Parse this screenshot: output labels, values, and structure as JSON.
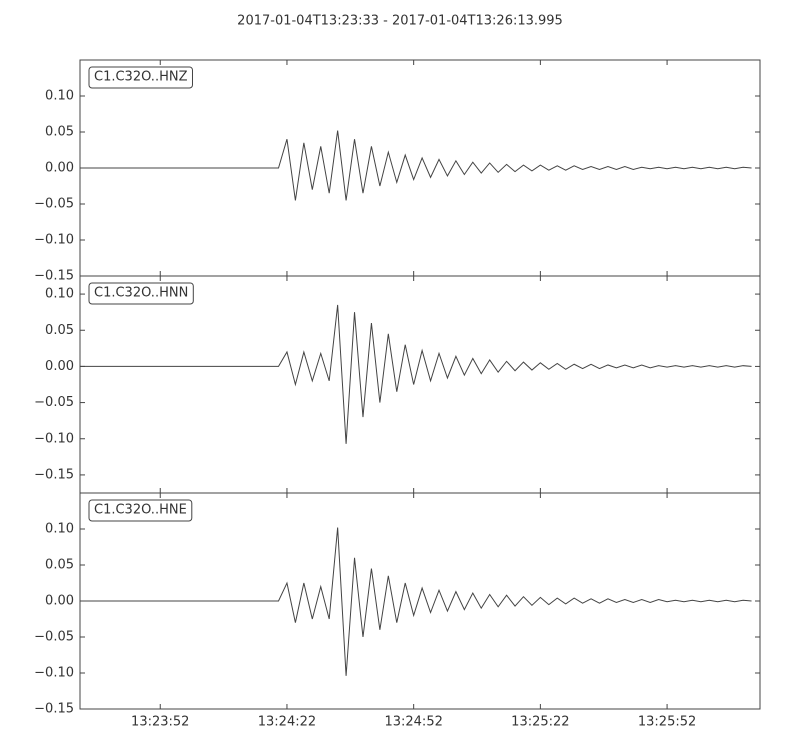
{
  "title": "2017-01-04T13:23:33  -  2017-01-04T13:26:13.995",
  "chart_data": [
    {
      "type": "line",
      "annotation": "C1.C32O..HNZ",
      "color": "#444444",
      "xlim": [
        "13:23:33",
        "13:26:14"
      ],
      "ylim": [
        -0.15,
        0.15
      ],
      "yticks": [
        {
          "value": -0.15,
          "label": "−0.15"
        },
        {
          "value": -0.1,
          "label": "−0.10"
        },
        {
          "value": -0.05,
          "label": "−0.05"
        },
        {
          "value": 0,
          "label": "0.00"
        },
        {
          "value": 0.05,
          "label": "0.05"
        },
        {
          "value": 0.1,
          "label": "0.10"
        }
      ],
      "x": [
        "13:23:33",
        "13:24:18",
        "13:24:20",
        "13:24:22",
        "13:24:24",
        "13:24:26",
        "13:24:28",
        "13:24:30",
        "13:24:32",
        "13:24:34",
        "13:24:36",
        "13:24:38",
        "13:24:40",
        "13:24:42",
        "13:24:44",
        "13:24:46",
        "13:24:48",
        "13:24:50",
        "13:24:52",
        "13:24:54",
        "13:24:56",
        "13:24:58",
        "13:25:00",
        "13:25:02",
        "13:25:04",
        "13:25:06",
        "13:25:08",
        "13:25:10",
        "13:25:12",
        "13:25:14",
        "13:25:16",
        "13:25:18",
        "13:25:20",
        "13:25:22",
        "13:25:24",
        "13:25:26",
        "13:25:28",
        "13:25:30",
        "13:25:32",
        "13:25:34",
        "13:25:36",
        "13:25:38",
        "13:25:40",
        "13:25:42",
        "13:25:44",
        "13:25:46",
        "13:25:48",
        "13:25:50",
        "13:25:52",
        "13:25:54",
        "13:25:56",
        "13:25:58",
        "13:26:00",
        "13:26:02",
        "13:26:04",
        "13:26:06",
        "13:26:08",
        "13:26:10",
        "13:26:12"
      ],
      "values": [
        0,
        0,
        0,
        0.04,
        -0.045,
        0.035,
        -0.03,
        0.03,
        -0.035,
        0.052,
        -0.045,
        0.04,
        -0.035,
        0.03,
        -0.025,
        0.022,
        -0.02,
        0.018,
        -0.016,
        0.014,
        -0.013,
        0.012,
        -0.011,
        0.01,
        -0.009,
        0.008,
        -0.007,
        0.007,
        -0.006,
        0.005,
        -0.005,
        0.004,
        -0.004,
        0.004,
        -0.003,
        0.003,
        -0.003,
        0.003,
        -0.002,
        0.002,
        -0.002,
        0.002,
        -0.002,
        0.002,
        -0.002,
        0.001,
        -0.001,
        0.001,
        -0.001,
        0.001,
        -0.001,
        0.001,
        -0.001,
        0.001,
        -0.001,
        0.001,
        -0.001,
        0.001,
        0
      ]
    },
    {
      "type": "line",
      "annotation": "C1.C32O..HNN",
      "color": "#444444",
      "xlim": [
        "13:23:33",
        "13:26:14"
      ],
      "ylim": [
        -0.175,
        0.125
      ],
      "yticks": [
        {
          "value": -0.15,
          "label": "−0.15"
        },
        {
          "value": -0.1,
          "label": "−0.10"
        },
        {
          "value": -0.05,
          "label": "−0.05"
        },
        {
          "value": 0,
          "label": "0.00"
        },
        {
          "value": 0.05,
          "label": "0.05"
        },
        {
          "value": 0.1,
          "label": "0.10"
        }
      ],
      "x": [
        "13:23:33",
        "13:24:18",
        "13:24:20",
        "13:24:22",
        "13:24:24",
        "13:24:26",
        "13:24:28",
        "13:24:30",
        "13:24:32",
        "13:24:34",
        "13:24:36",
        "13:24:38",
        "13:24:40",
        "13:24:42",
        "13:24:44",
        "13:24:46",
        "13:24:48",
        "13:24:50",
        "13:24:52",
        "13:24:54",
        "13:24:56",
        "13:24:58",
        "13:25:00",
        "13:25:02",
        "13:25:04",
        "13:25:06",
        "13:25:08",
        "13:25:10",
        "13:25:12",
        "13:25:14",
        "13:25:16",
        "13:25:18",
        "13:25:20",
        "13:25:22",
        "13:25:24",
        "13:25:26",
        "13:25:28",
        "13:25:30",
        "13:25:32",
        "13:25:34",
        "13:25:36",
        "13:25:38",
        "13:25:40",
        "13:25:42",
        "13:25:44",
        "13:25:46",
        "13:25:48",
        "13:25:50",
        "13:25:52",
        "13:25:54",
        "13:25:56",
        "13:25:58",
        "13:26:00",
        "13:26:02",
        "13:26:04",
        "13:26:06",
        "13:26:08",
        "13:26:10",
        "13:26:12"
      ],
      "values": [
        0,
        0,
        0,
        0.02,
        -0.025,
        0.02,
        -0.02,
        0.018,
        -0.02,
        0.085,
        -0.107,
        0.075,
        -0.07,
        0.06,
        -0.05,
        0.045,
        -0.035,
        0.03,
        -0.025,
        0.022,
        -0.02,
        0.018,
        -0.016,
        0.014,
        -0.012,
        0.011,
        -0.01,
        0.009,
        -0.008,
        0.007,
        -0.006,
        0.006,
        -0.005,
        0.005,
        -0.004,
        0.004,
        -0.004,
        0.003,
        -0.003,
        0.003,
        -0.003,
        0.002,
        -0.002,
        0.002,
        -0.002,
        0.002,
        -0.002,
        0.001,
        -0.001,
        0.001,
        -0.001,
        0.001,
        -0.001,
        0.001,
        -0.001,
        0.001,
        -0.001,
        0.001,
        0
      ]
    },
    {
      "type": "line",
      "annotation": "C1.C32O..HNE",
      "color": "#444444",
      "xlim": [
        "13:23:33",
        "13:26:14"
      ],
      "ylim": [
        -0.15,
        0.15
      ],
      "xticks": [
        "13:23:52",
        "13:24:22",
        "13:24:52",
        "13:25:22",
        "13:25:52"
      ],
      "yticks": [
        {
          "value": -0.15,
          "label": "−0.15"
        },
        {
          "value": -0.1,
          "label": "−0.10"
        },
        {
          "value": -0.05,
          "label": "−0.05"
        },
        {
          "value": 0,
          "label": "0.00"
        },
        {
          "value": 0.05,
          "label": "0.05"
        },
        {
          "value": 0.1,
          "label": "0.10"
        }
      ],
      "x": [
        "13:23:33",
        "13:24:18",
        "13:24:20",
        "13:24:22",
        "13:24:24",
        "13:24:26",
        "13:24:28",
        "13:24:30",
        "13:24:32",
        "13:24:34",
        "13:24:36",
        "13:24:38",
        "13:24:40",
        "13:24:42",
        "13:24:44",
        "13:24:46",
        "13:24:48",
        "13:24:50",
        "13:24:52",
        "13:24:54",
        "13:24:56",
        "13:24:58",
        "13:25:00",
        "13:25:02",
        "13:25:04",
        "13:25:06",
        "13:25:08",
        "13:25:10",
        "13:25:12",
        "13:25:14",
        "13:25:16",
        "13:25:18",
        "13:25:20",
        "13:25:22",
        "13:25:24",
        "13:25:26",
        "13:25:28",
        "13:25:30",
        "13:25:32",
        "13:25:34",
        "13:25:36",
        "13:25:38",
        "13:25:40",
        "13:25:42",
        "13:25:44",
        "13:25:46",
        "13:25:48",
        "13:25:50",
        "13:25:52",
        "13:25:54",
        "13:25:56",
        "13:25:58",
        "13:26:00",
        "13:26:02",
        "13:26:04",
        "13:26:06",
        "13:26:08",
        "13:26:10",
        "13:26:12"
      ],
      "values": [
        0,
        0,
        0,
        0.025,
        -0.03,
        0.025,
        -0.025,
        0.02,
        -0.025,
        0.102,
        -0.104,
        0.06,
        -0.05,
        0.045,
        -0.04,
        0.035,
        -0.03,
        0.025,
        -0.02,
        0.018,
        -0.016,
        0.015,
        -0.014,
        0.013,
        -0.012,
        0.011,
        -0.01,
        0.009,
        -0.008,
        0.008,
        -0.007,
        0.006,
        -0.006,
        0.005,
        -0.005,
        0.004,
        -0.004,
        0.004,
        -0.003,
        0.003,
        -0.003,
        0.003,
        -0.002,
        0.002,
        -0.002,
        0.002,
        -0.002,
        0.002,
        -0.001,
        0.001,
        -0.001,
        0.001,
        -0.001,
        0.001,
        -0.001,
        0.001,
        -0.001,
        0.001,
        0
      ]
    }
  ]
}
